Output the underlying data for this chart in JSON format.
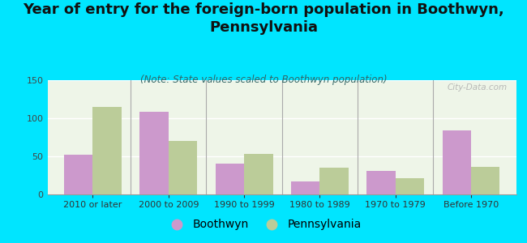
{
  "title": "Year of entry for the foreign-born population in Boothwyn,\nPennsylvania",
  "subtitle": "(Note: State values scaled to Boothwyn population)",
  "categories": [
    "2010 or later",
    "2000 to 2009",
    "1990 to 1999",
    "1980 to 1989",
    "1970 to 1979",
    "Before 1970"
  ],
  "boothwyn_values": [
    52,
    108,
    40,
    17,
    31,
    84
  ],
  "pennsylvania_values": [
    115,
    70,
    53,
    35,
    21,
    36
  ],
  "boothwyn_color": "#cc99cc",
  "pennsylvania_color": "#bbcc99",
  "background_color": "#00e5ff",
  "plot_bg": "#eef5e8",
  "ylim": [
    0,
    150
  ],
  "yticks": [
    0,
    50,
    100,
    150
  ],
  "bar_width": 0.38,
  "title_fontsize": 13,
  "subtitle_fontsize": 8.5,
  "tick_fontsize": 8,
  "legend_fontsize": 10,
  "watermark": "City-Data.com"
}
